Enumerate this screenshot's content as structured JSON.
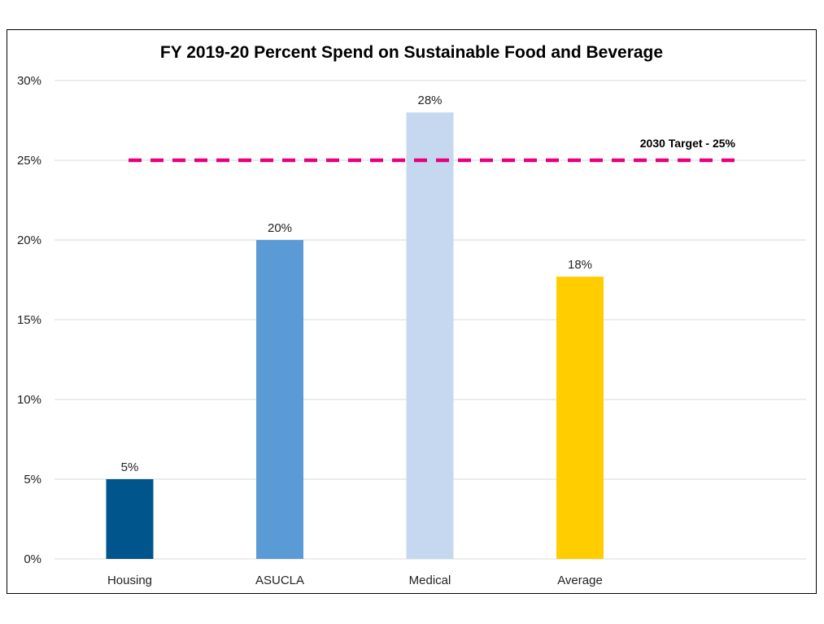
{
  "chart_data": {
    "type": "bar",
    "title": "FY 2019-20 Percent Spend on Sustainable Food and Beverage",
    "xlabel": "",
    "ylabel": "",
    "categories": [
      "Housing",
      "ASUCLA",
      "Medical",
      "Average"
    ],
    "values": [
      5,
      20,
      28,
      17.7
    ],
    "data_labels": [
      "5%",
      "20%",
      "28%",
      "18%"
    ],
    "bar_colors": [
      "#00558C",
      "#5B9BD5",
      "#C5D8EF",
      "#FFCD00"
    ],
    "ylim": [
      0,
      30
    ],
    "yticks": [
      0,
      5,
      10,
      15,
      20,
      25,
      30
    ],
    "ytick_labels": [
      "0%",
      "5%",
      "10%",
      "15%",
      "20%",
      "25%",
      "30%"
    ],
    "grid": true,
    "target_line": {
      "value": 25,
      "label": "2030 Target - 25%",
      "color": "#E6007E",
      "style": "dashed"
    }
  }
}
